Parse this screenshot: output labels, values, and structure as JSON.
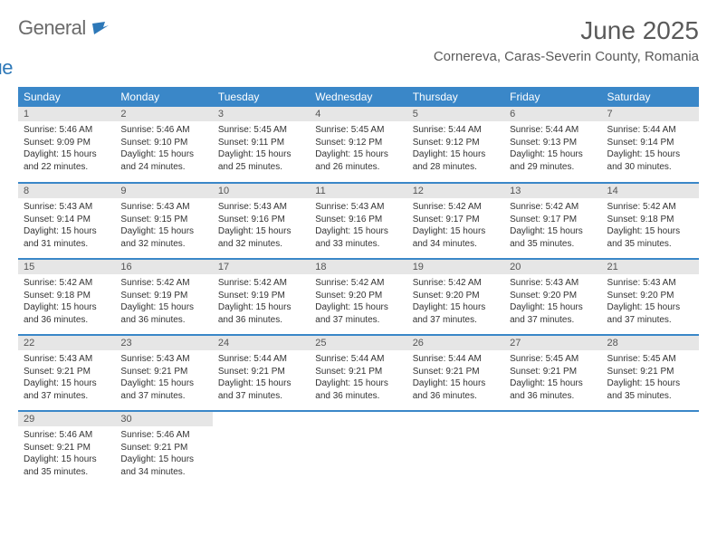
{
  "logo": {
    "text1": "General",
    "text2": "Blue"
  },
  "title": "June 2025",
  "location": "Cornereva, Caras-Severin County, Romania",
  "brand_color": "#3a87c8",
  "header_bg": "#3a87c8",
  "daynum_bg": "#e6e6e6",
  "weekdays": [
    "Sunday",
    "Monday",
    "Tuesday",
    "Wednesday",
    "Thursday",
    "Friday",
    "Saturday"
  ],
  "weeks": [
    [
      {
        "day": "1",
        "sunrise": "5:46 AM",
        "sunset": "9:09 PM",
        "daylight": "15 hours and 22 minutes."
      },
      {
        "day": "2",
        "sunrise": "5:46 AM",
        "sunset": "9:10 PM",
        "daylight": "15 hours and 24 minutes."
      },
      {
        "day": "3",
        "sunrise": "5:45 AM",
        "sunset": "9:11 PM",
        "daylight": "15 hours and 25 minutes."
      },
      {
        "day": "4",
        "sunrise": "5:45 AM",
        "sunset": "9:12 PM",
        "daylight": "15 hours and 26 minutes."
      },
      {
        "day": "5",
        "sunrise": "5:44 AM",
        "sunset": "9:12 PM",
        "daylight": "15 hours and 28 minutes."
      },
      {
        "day": "6",
        "sunrise": "5:44 AM",
        "sunset": "9:13 PM",
        "daylight": "15 hours and 29 minutes."
      },
      {
        "day": "7",
        "sunrise": "5:44 AM",
        "sunset": "9:14 PM",
        "daylight": "15 hours and 30 minutes."
      }
    ],
    [
      {
        "day": "8",
        "sunrise": "5:43 AM",
        "sunset": "9:14 PM",
        "daylight": "15 hours and 31 minutes."
      },
      {
        "day": "9",
        "sunrise": "5:43 AM",
        "sunset": "9:15 PM",
        "daylight": "15 hours and 32 minutes."
      },
      {
        "day": "10",
        "sunrise": "5:43 AM",
        "sunset": "9:16 PM",
        "daylight": "15 hours and 32 minutes."
      },
      {
        "day": "11",
        "sunrise": "5:43 AM",
        "sunset": "9:16 PM",
        "daylight": "15 hours and 33 minutes."
      },
      {
        "day": "12",
        "sunrise": "5:42 AM",
        "sunset": "9:17 PM",
        "daylight": "15 hours and 34 minutes."
      },
      {
        "day": "13",
        "sunrise": "5:42 AM",
        "sunset": "9:17 PM",
        "daylight": "15 hours and 35 minutes."
      },
      {
        "day": "14",
        "sunrise": "5:42 AM",
        "sunset": "9:18 PM",
        "daylight": "15 hours and 35 minutes."
      }
    ],
    [
      {
        "day": "15",
        "sunrise": "5:42 AM",
        "sunset": "9:18 PM",
        "daylight": "15 hours and 36 minutes."
      },
      {
        "day": "16",
        "sunrise": "5:42 AM",
        "sunset": "9:19 PM",
        "daylight": "15 hours and 36 minutes."
      },
      {
        "day": "17",
        "sunrise": "5:42 AM",
        "sunset": "9:19 PM",
        "daylight": "15 hours and 36 minutes."
      },
      {
        "day": "18",
        "sunrise": "5:42 AM",
        "sunset": "9:20 PM",
        "daylight": "15 hours and 37 minutes."
      },
      {
        "day": "19",
        "sunrise": "5:42 AM",
        "sunset": "9:20 PM",
        "daylight": "15 hours and 37 minutes."
      },
      {
        "day": "20",
        "sunrise": "5:43 AM",
        "sunset": "9:20 PM",
        "daylight": "15 hours and 37 minutes."
      },
      {
        "day": "21",
        "sunrise": "5:43 AM",
        "sunset": "9:20 PM",
        "daylight": "15 hours and 37 minutes."
      }
    ],
    [
      {
        "day": "22",
        "sunrise": "5:43 AM",
        "sunset": "9:21 PM",
        "daylight": "15 hours and 37 minutes."
      },
      {
        "day": "23",
        "sunrise": "5:43 AM",
        "sunset": "9:21 PM",
        "daylight": "15 hours and 37 minutes."
      },
      {
        "day": "24",
        "sunrise": "5:44 AM",
        "sunset": "9:21 PM",
        "daylight": "15 hours and 37 minutes."
      },
      {
        "day": "25",
        "sunrise": "5:44 AM",
        "sunset": "9:21 PM",
        "daylight": "15 hours and 36 minutes."
      },
      {
        "day": "26",
        "sunrise": "5:44 AM",
        "sunset": "9:21 PM",
        "daylight": "15 hours and 36 minutes."
      },
      {
        "day": "27",
        "sunrise": "5:45 AM",
        "sunset": "9:21 PM",
        "daylight": "15 hours and 36 minutes."
      },
      {
        "day": "28",
        "sunrise": "5:45 AM",
        "sunset": "9:21 PM",
        "daylight": "15 hours and 35 minutes."
      }
    ],
    [
      {
        "day": "29",
        "sunrise": "5:46 AM",
        "sunset": "9:21 PM",
        "daylight": "15 hours and 35 minutes."
      },
      {
        "day": "30",
        "sunrise": "5:46 AM",
        "sunset": "9:21 PM",
        "daylight": "15 hours and 34 minutes."
      },
      null,
      null,
      null,
      null,
      null
    ]
  ],
  "labels": {
    "sunrise": "Sunrise:",
    "sunset": "Sunset:",
    "daylight": "Daylight:"
  }
}
